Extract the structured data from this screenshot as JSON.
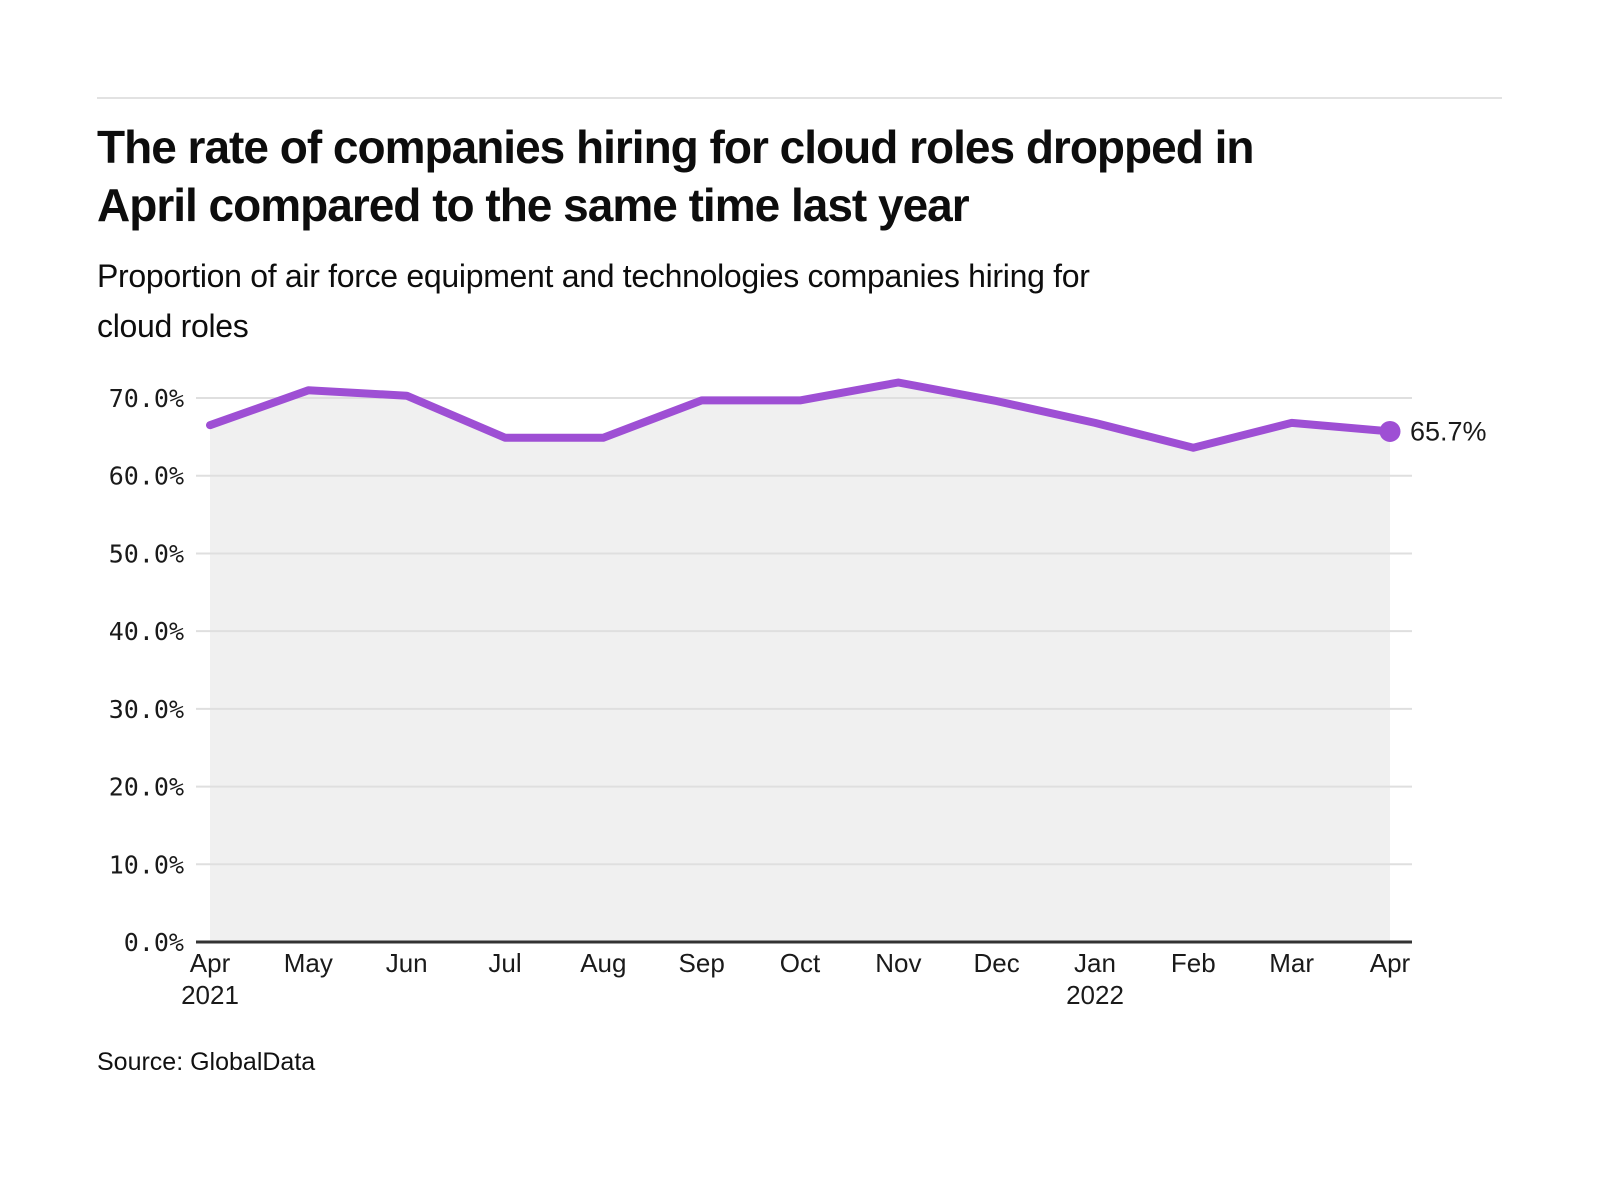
{
  "header": {
    "title_lines": [
      "The rate of companies hiring for cloud roles dropped in",
      "April compared to the same time last year"
    ],
    "subtitle_lines": [
      "Proportion of air force equipment and technologies companies hiring for",
      "cloud roles"
    ]
  },
  "source": {
    "text": "Source: GlobalData"
  },
  "chart_data": {
    "type": "line",
    "title": "The rate of companies hiring for cloud roles dropped in April compared to the same time last year",
    "subtitle": "Proportion of air force equipment and technologies companies hiring for cloud roles",
    "categories": [
      "Apr",
      "May",
      "Jun",
      "Jul",
      "Aug",
      "Sep",
      "Oct",
      "Nov",
      "Dec",
      "Jan",
      "Feb",
      "Mar",
      "Apr"
    ],
    "year_labels": [
      {
        "index": 0,
        "text": "2021"
      },
      {
        "index": 9,
        "text": "2022"
      }
    ],
    "series": [
      {
        "name": "Proportion of air force equipment and technologies companies hiring for cloud roles",
        "values": [
          66.5,
          71.0,
          70.3,
          64.9,
          64.9,
          69.7,
          69.7,
          72.0,
          69.6,
          66.8,
          63.6,
          66.8,
          65.7
        ]
      }
    ],
    "end_label": "65.7%",
    "yticks": [
      0,
      10,
      20,
      30,
      40,
      50,
      60,
      70
    ],
    "ytick_labels": [
      "0.0%",
      "10.0%",
      "20.0%",
      "30.0%",
      "40.0%",
      "50.0%",
      "60.0%",
      "70.0%"
    ],
    "ylim": [
      0,
      73
    ],
    "grid": true,
    "legend_position": "none",
    "line_color": "#9e4fd4",
    "fill_color": "#f0f0f0",
    "gridline_color": "#dfdfdf",
    "axis_color": "#333333"
  }
}
